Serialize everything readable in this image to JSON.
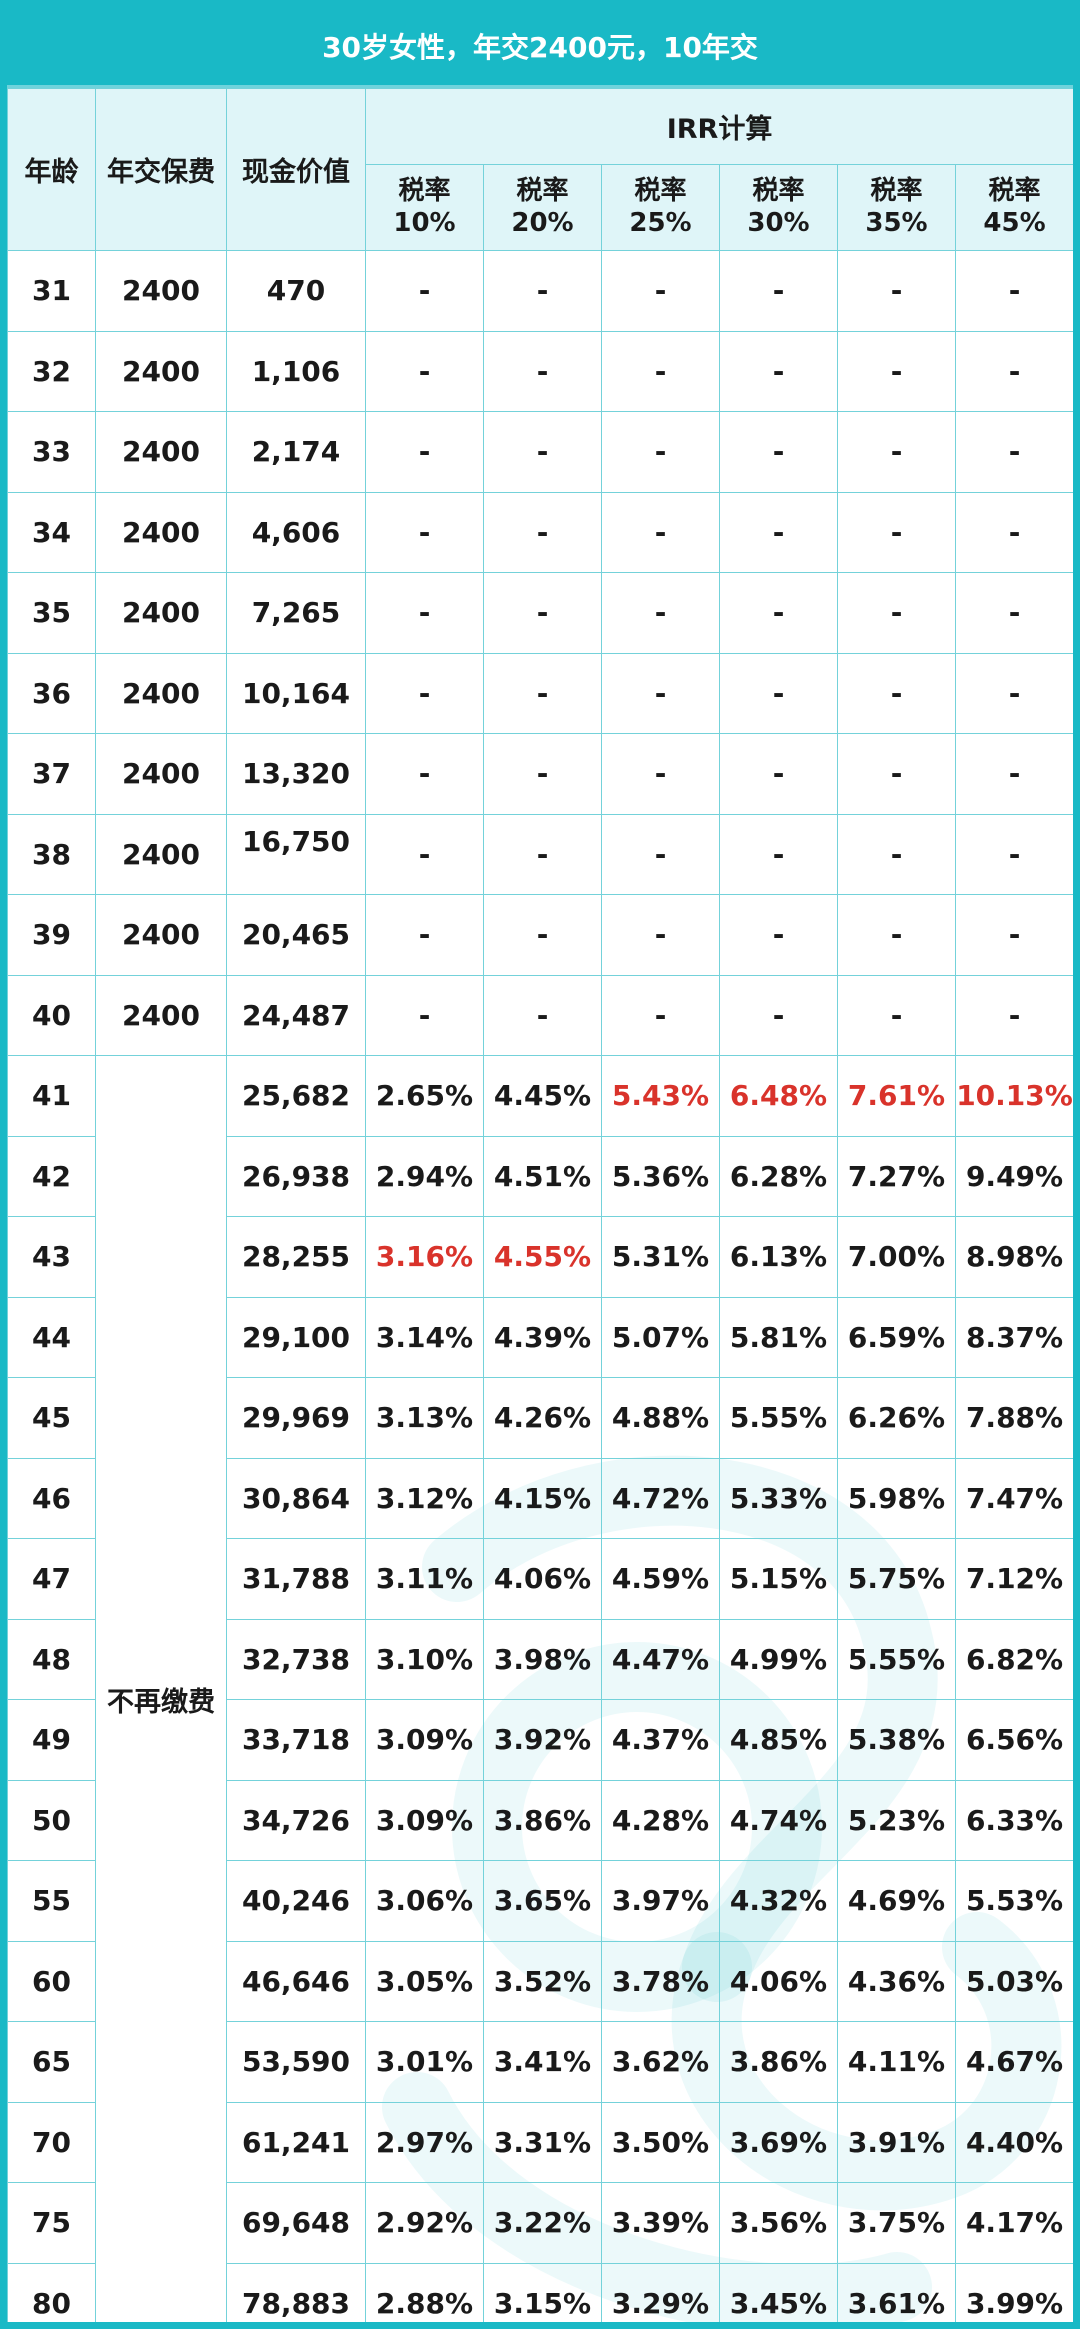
{
  "title": "30岁女性，年交2400元，10年交",
  "headers": {
    "age": "年龄",
    "premium": "年交保费",
    "cash_value": "现金价值",
    "irr_group": "IRR计算",
    "rates": [
      {
        "l1": "税率",
        "l2": "10%"
      },
      {
        "l1": "税率",
        "l2": "20%"
      },
      {
        "l1": "税率",
        "l2": "25%"
      },
      {
        "l1": "税率",
        "l2": "30%"
      },
      {
        "l1": "税率",
        "l2": "35%"
      },
      {
        "l1": "税率",
        "l2": "45%"
      }
    ]
  },
  "no_more_payment_label": "不再缴费",
  "colors": {
    "accent": "#19b9c6",
    "header_bg": "#dff5f8",
    "highlight": "#d9332b"
  },
  "rows": [
    {
      "age": "31",
      "premium": "2400",
      "cv": "470",
      "irr": [
        "-",
        "-",
        "-",
        "-",
        "-",
        "-"
      ]
    },
    {
      "age": "32",
      "premium": "2400",
      "cv": "1,106",
      "irr": [
        "-",
        "-",
        "-",
        "-",
        "-",
        "-"
      ]
    },
    {
      "age": "33",
      "premium": "2400",
      "cv": "2,174",
      "irr": [
        "-",
        "-",
        "-",
        "-",
        "-",
        "-"
      ]
    },
    {
      "age": "34",
      "premium": "2400",
      "cv": "4,606",
      "irr": [
        "-",
        "-",
        "-",
        "-",
        "-",
        "-"
      ]
    },
    {
      "age": "35",
      "premium": "2400",
      "cv": "7,265",
      "irr": [
        "-",
        "-",
        "-",
        "-",
        "-",
        "-"
      ]
    },
    {
      "age": "36",
      "premium": "2400",
      "cv": "10,164",
      "irr": [
        "-",
        "-",
        "-",
        "-",
        "-",
        "-"
      ]
    },
    {
      "age": "37",
      "premium": "2400",
      "cv": "13,320",
      "irr": [
        "-",
        "-",
        "-",
        "-",
        "-",
        "-"
      ]
    },
    {
      "age": "38",
      "premium": "2400",
      "cv": "16,750",
      "irr": [
        "-",
        "-",
        "-",
        "-",
        "-",
        "-"
      ]
    },
    {
      "age": "39",
      "premium": "2400",
      "cv": "20,465",
      "irr": [
        "-",
        "-",
        "-",
        "-",
        "-",
        "-"
      ]
    },
    {
      "age": "40",
      "premium": "2400",
      "cv": "24,487",
      "irr": [
        "-",
        "-",
        "-",
        "-",
        "-",
        "-"
      ]
    },
    {
      "age": "41",
      "cv": "25,682",
      "irr": [
        "2.65%",
        "4.45%",
        "5.43%",
        "6.48%",
        "7.61%",
        "10.13%"
      ],
      "red": [
        false,
        false,
        true,
        true,
        true,
        true
      ]
    },
    {
      "age": "42",
      "cv": "26,938",
      "irr": [
        "2.94%",
        "4.51%",
        "5.36%",
        "6.28%",
        "7.27%",
        "9.49%"
      ]
    },
    {
      "age": "43",
      "cv": "28,255",
      "irr": [
        "3.16%",
        "4.55%",
        "5.31%",
        "6.13%",
        "7.00%",
        "8.98%"
      ],
      "red": [
        true,
        true,
        false,
        false,
        false,
        false
      ]
    },
    {
      "age": "44",
      "cv": "29,100",
      "irr": [
        "3.14%",
        "4.39%",
        "5.07%",
        "5.81%",
        "6.59%",
        "8.37%"
      ]
    },
    {
      "age": "45",
      "cv": "29,969",
      "irr": [
        "3.13%",
        "4.26%",
        "4.88%",
        "5.55%",
        "6.26%",
        "7.88%"
      ]
    },
    {
      "age": "46",
      "cv": "30,864",
      "irr": [
        "3.12%",
        "4.15%",
        "4.72%",
        "5.33%",
        "5.98%",
        "7.47%"
      ]
    },
    {
      "age": "47",
      "cv": "31,788",
      "irr": [
        "3.11%",
        "4.06%",
        "4.59%",
        "5.15%",
        "5.75%",
        "7.12%"
      ]
    },
    {
      "age": "48",
      "cv": "32,738",
      "irr": [
        "3.10%",
        "3.98%",
        "4.47%",
        "4.99%",
        "5.55%",
        "6.82%"
      ]
    },
    {
      "age": "49",
      "cv": "33,718",
      "irr": [
        "3.09%",
        "3.92%",
        "4.37%",
        "4.85%",
        "5.38%",
        "6.56%"
      ]
    },
    {
      "age": "50",
      "cv": "34,726",
      "irr": [
        "3.09%",
        "3.86%",
        "4.28%",
        "4.74%",
        "5.23%",
        "6.33%"
      ]
    },
    {
      "age": "55",
      "cv": "40,246",
      "irr": [
        "3.06%",
        "3.65%",
        "3.97%",
        "4.32%",
        "4.69%",
        "5.53%"
      ]
    },
    {
      "age": "60",
      "cv": "46,646",
      "irr": [
        "3.05%",
        "3.52%",
        "3.78%",
        "4.06%",
        "4.36%",
        "5.03%"
      ]
    },
    {
      "age": "65",
      "cv": "53,590",
      "irr": [
        "3.01%",
        "3.41%",
        "3.62%",
        "3.86%",
        "4.11%",
        "4.67%"
      ]
    },
    {
      "age": "70",
      "cv": "61,241",
      "irr": [
        "2.97%",
        "3.31%",
        "3.50%",
        "3.69%",
        "3.91%",
        "4.40%"
      ]
    },
    {
      "age": "75",
      "cv": "69,648",
      "irr": [
        "2.92%",
        "3.22%",
        "3.39%",
        "3.56%",
        "3.75%",
        "4.17%"
      ]
    },
    {
      "age": "80",
      "cv": "78,883",
      "irr": [
        "2.88%",
        "3.15%",
        "3.29%",
        "3.45%",
        "3.61%",
        "3.99%"
      ]
    }
  ]
}
